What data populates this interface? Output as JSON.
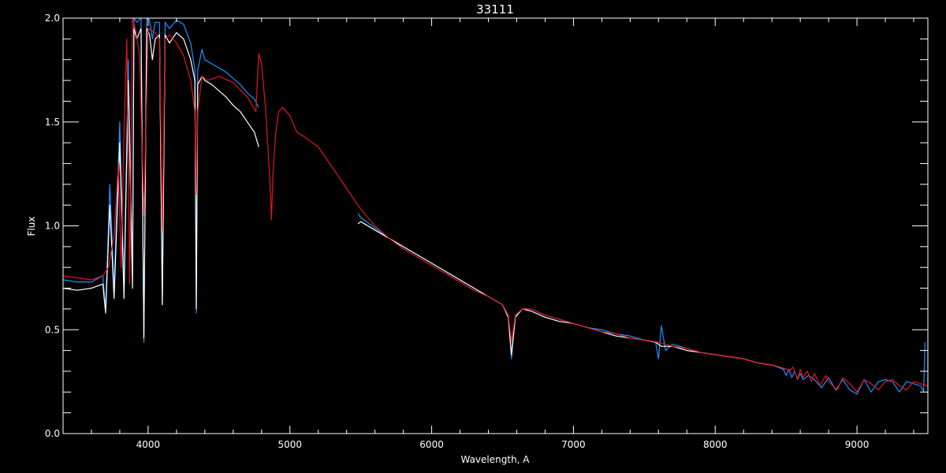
{
  "chart_data": {
    "type": "line",
    "title": "33111",
    "xlabel": "Wavelength, A",
    "ylabel": "Flux",
    "xlim": [
      3400,
      9500
    ],
    "ylim": [
      0.0,
      2.0
    ],
    "x_ticks": [
      4000,
      5000,
      6000,
      7000,
      8000,
      9000
    ],
    "x_tick_labels": [
      "4000",
      "5000",
      "6000",
      "7000",
      "8000",
      "9000"
    ],
    "x_minor_step": 200,
    "y_ticks": [
      0.0,
      0.5,
      1.0,
      1.5,
      2.0
    ],
    "y_tick_labels": [
      "0.0",
      "0.5",
      "1.0",
      "1.5",
      "2.0"
    ],
    "y_minor_step": 0.1,
    "grid": false,
    "colors": {
      "background": "#000000",
      "axes": "#ffffff",
      "observed": "#ffffff",
      "model": "#e0161b",
      "flux_calibrated": "#1e8fff"
    },
    "series": [
      {
        "color_key": "flux_calibrated",
        "segments": [
          {
            "x": [
              3400,
              3500,
              3600,
              3680,
              3700,
              3730,
              3760,
              3800,
              3830,
              3860,
              3890,
              3900,
              3920,
              3950,
              3970,
              3990,
              4010,
              4030,
              4050,
              4080,
              4100,
              4120,
              4150,
              4200,
              4250,
              4300,
              4330,
              4340,
              4350,
              4380,
              4400,
              4450,
              4500,
              4550,
              4600,
              4650,
              4700,
              4750,
              4780
            ],
            "y": [
              0.74,
              0.73,
              0.73,
              0.76,
              0.6,
              1.2,
              0.7,
              1.5,
              0.7,
              1.8,
              0.75,
              2.0,
              1.98,
              2.0,
              0.44,
              2.0,
              1.99,
              1.9,
              1.98,
              1.98,
              0.62,
              1.98,
              1.95,
              1.99,
              1.97,
              1.88,
              1.75,
              0.58,
              1.75,
              1.85,
              1.8,
              1.78,
              1.76,
              1.74,
              1.71,
              1.68,
              1.64,
              1.61,
              1.57
            ]
          },
          {
            "x": [
              5480,
              5500,
              5600,
              5700,
              5800,
              5900,
              6000,
              6100,
              6200,
              6300,
              6400,
              6500,
              6540,
              6563,
              6590,
              6640,
              6700,
              6800,
              6900,
              7000,
              7100,
              7200,
              7300,
              7400,
              7500,
              7580,
              7600,
              7620,
              7650,
              7700,
              7800,
              7900,
              8000,
              8100,
              8200,
              8300,
              8400,
              8480,
              8500,
              8520,
              8540,
              8560,
              8580,
              8600,
              8620,
              8660,
              8700,
              8750,
              8800,
              8850,
              8900,
              8950,
              9000,
              9050,
              9100,
              9150,
              9200,
              9250,
              9300,
              9350,
              9400,
              9450,
              9470,
              9480
            ],
            "y": [
              1.06,
              1.04,
              0.99,
              0.94,
              0.89,
              0.85,
              0.81,
              0.77,
              0.73,
              0.69,
              0.66,
              0.62,
              0.57,
              0.36,
              0.57,
              0.6,
              0.6,
              0.57,
              0.55,
              0.53,
              0.51,
              0.5,
              0.48,
              0.47,
              0.45,
              0.44,
              0.36,
              0.52,
              0.4,
              0.43,
              0.41,
              0.39,
              0.38,
              0.37,
              0.36,
              0.34,
              0.33,
              0.31,
              0.28,
              0.31,
              0.27,
              0.3,
              0.26,
              0.29,
              0.26,
              0.28,
              0.26,
              0.22,
              0.27,
              0.21,
              0.26,
              0.21,
              0.19,
              0.26,
              0.2,
              0.25,
              0.26,
              0.25,
              0.2,
              0.25,
              0.24,
              0.23,
              0.2,
              0.44
            ]
          }
        ]
      },
      {
        "color_key": "observed",
        "segments": [
          {
            "x": [
              3400,
              3500,
              3600,
              3680,
              3700,
              3730,
              3760,
              3800,
              3830,
              3860,
              3890,
              3900,
              3920,
              3950,
              3970,
              3990,
              4010,
              4030,
              4050,
              4080,
              4100,
              4120,
              4150,
              4200,
              4250,
              4300,
              4330,
              4340,
              4350,
              4380,
              4400,
              4450,
              4500,
              4550,
              4600,
              4650,
              4700,
              4750,
              4780
            ],
            "y": [
              0.7,
              0.69,
              0.7,
              0.72,
              0.58,
              1.1,
              0.65,
              1.4,
              0.65,
              1.7,
              0.7,
              1.95,
              1.9,
              1.95,
              0.46,
              1.95,
              1.92,
              1.8,
              1.9,
              1.92,
              0.62,
              1.92,
              1.88,
              1.93,
              1.9,
              1.8,
              1.7,
              0.6,
              1.68,
              1.72,
              1.7,
              1.68,
              1.65,
              1.62,
              1.58,
              1.55,
              1.5,
              1.45,
              1.38
            ]
          },
          {
            "x": [
              5480,
              5500,
              5600,
              5700,
              5800,
              5900,
              6000,
              6100,
              6200,
              6300,
              6400,
              6500,
              6540,
              6563,
              6590,
              6640,
              6700,
              6800,
              6900,
              7000,
              7100,
              7200,
              7300,
              7400,
              7500,
              7580,
              7620,
              7700,
              7800,
              7900,
              8000,
              8100,
              8200,
              8300,
              8400,
              8500
            ],
            "y": [
              1.01,
              1.02,
              0.98,
              0.94,
              0.9,
              0.86,
              0.82,
              0.78,
              0.74,
              0.7,
              0.66,
              0.62,
              0.56,
              0.38,
              0.56,
              0.6,
              0.59,
              0.56,
              0.54,
              0.53,
              0.51,
              0.49,
              0.47,
              0.46,
              0.45,
              0.44,
              0.42,
              0.42,
              0.4,
              0.39,
              0.38,
              0.37,
              0.36,
              0.34,
              0.33,
              0.31
            ]
          }
        ]
      },
      {
        "color_key": "model",
        "segments": [
          {
            "x": [
              3400,
              3500,
              3600,
              3680,
              3720,
              3760,
              3790,
              3810,
              3830,
              3850,
              3870,
              3890,
              3910,
              3940,
              3970,
              4000,
              4050,
              4080,
              4100,
              4120,
              4150,
              4200,
              4250,
              4300,
              4330,
              4340,
              4350,
              4380,
              4420,
              4500,
              4600,
              4700,
              4760,
              4780,
              4800,
              4830,
              4860,
              4870,
              4880,
              4900,
              4920,
              4950,
              5000,
              5050,
              5100,
              5200,
              5300,
              5400,
              5500,
              5600,
              5700,
              5800,
              5900,
              6000,
              6100,
              6200,
              6300,
              6400,
              6500,
              6540,
              6563,
              6590,
              6640,
              6700,
              6800,
              6900,
              7000,
              7100,
              7200,
              7300,
              7400,
              7500,
              7600,
              7700,
              7800,
              7900,
              8000,
              8100,
              8200,
              8300,
              8400,
              8450,
              8500,
              8520,
              8550,
              8580,
              8600,
              8620,
              8650,
              8680,
              8700,
              8740,
              8780,
              8800,
              8860,
              8900,
              8950,
              9000,
              9050,
              9100,
              9150,
              9200,
              9250,
              9300,
              9350,
              9400,
              9450,
              9500
            ],
            "y": [
              0.76,
              0.75,
              0.74,
              0.76,
              0.8,
              0.95,
              1.3,
              0.8,
              1.45,
              1.9,
              0.72,
              2.0,
              1.95,
              1.82,
              1.05,
              1.95,
              1.93,
              1.9,
              0.98,
              1.9,
              1.92,
              1.88,
              1.82,
              1.7,
              1.55,
              1.15,
              1.55,
              1.72,
              1.7,
              1.72,
              1.69,
              1.62,
              1.55,
              1.83,
              1.78,
              1.55,
              1.2,
              1.03,
              1.25,
              1.45,
              1.55,
              1.57,
              1.53,
              1.45,
              1.43,
              1.38,
              1.28,
              1.18,
              1.08,
              1.0,
              0.94,
              0.89,
              0.85,
              0.81,
              0.77,
              0.73,
              0.69,
              0.66,
              0.62,
              0.57,
              0.44,
              0.57,
              0.6,
              0.6,
              0.57,
              0.55,
              0.53,
              0.51,
              0.49,
              0.48,
              0.46,
              0.45,
              0.44,
              0.42,
              0.41,
              0.39,
              0.38,
              0.37,
              0.36,
              0.34,
              0.33,
              0.32,
              0.31,
              0.3,
              0.32,
              0.26,
              0.31,
              0.27,
              0.3,
              0.25,
              0.29,
              0.23,
              0.28,
              0.25,
              0.21,
              0.27,
              0.24,
              0.2,
              0.26,
              0.24,
              0.21,
              0.25,
              0.26,
              0.23,
              0.21,
              0.25,
              0.24,
              0.23
            ]
          }
        ]
      }
    ]
  }
}
